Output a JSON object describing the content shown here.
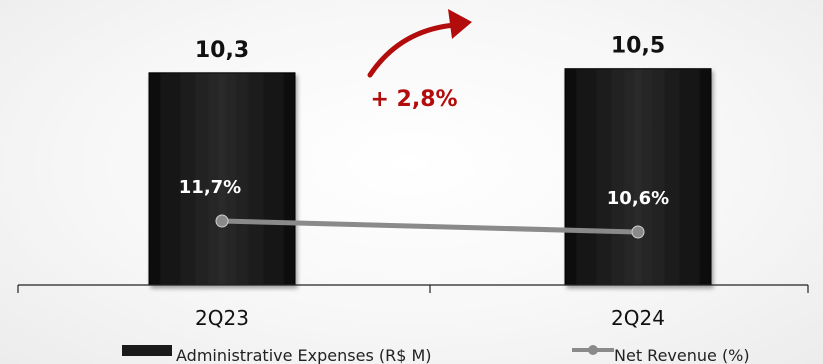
{
  "chart_data": {
    "type": "bar",
    "categories": [
      "2Q23",
      "2Q24"
    ],
    "series": [
      {
        "name": "Administrative Expenses (R$ M)",
        "type": "bar",
        "values": [
          10.3,
          10.5
        ],
        "labels": [
          "10,3",
          "10,5"
        ],
        "color": "#1a1a1a"
      },
      {
        "name": "Net Revenue (%)",
        "type": "line",
        "values": [
          11.7,
          10.6
        ],
        "labels": [
          "11,7%",
          "10,6%"
        ],
        "color": "#8a8a8a"
      }
    ],
    "annotation": {
      "text": "+ 2,8%",
      "color": "#b20c0c"
    },
    "legend_position": "bottom",
    "grid": false
  }
}
